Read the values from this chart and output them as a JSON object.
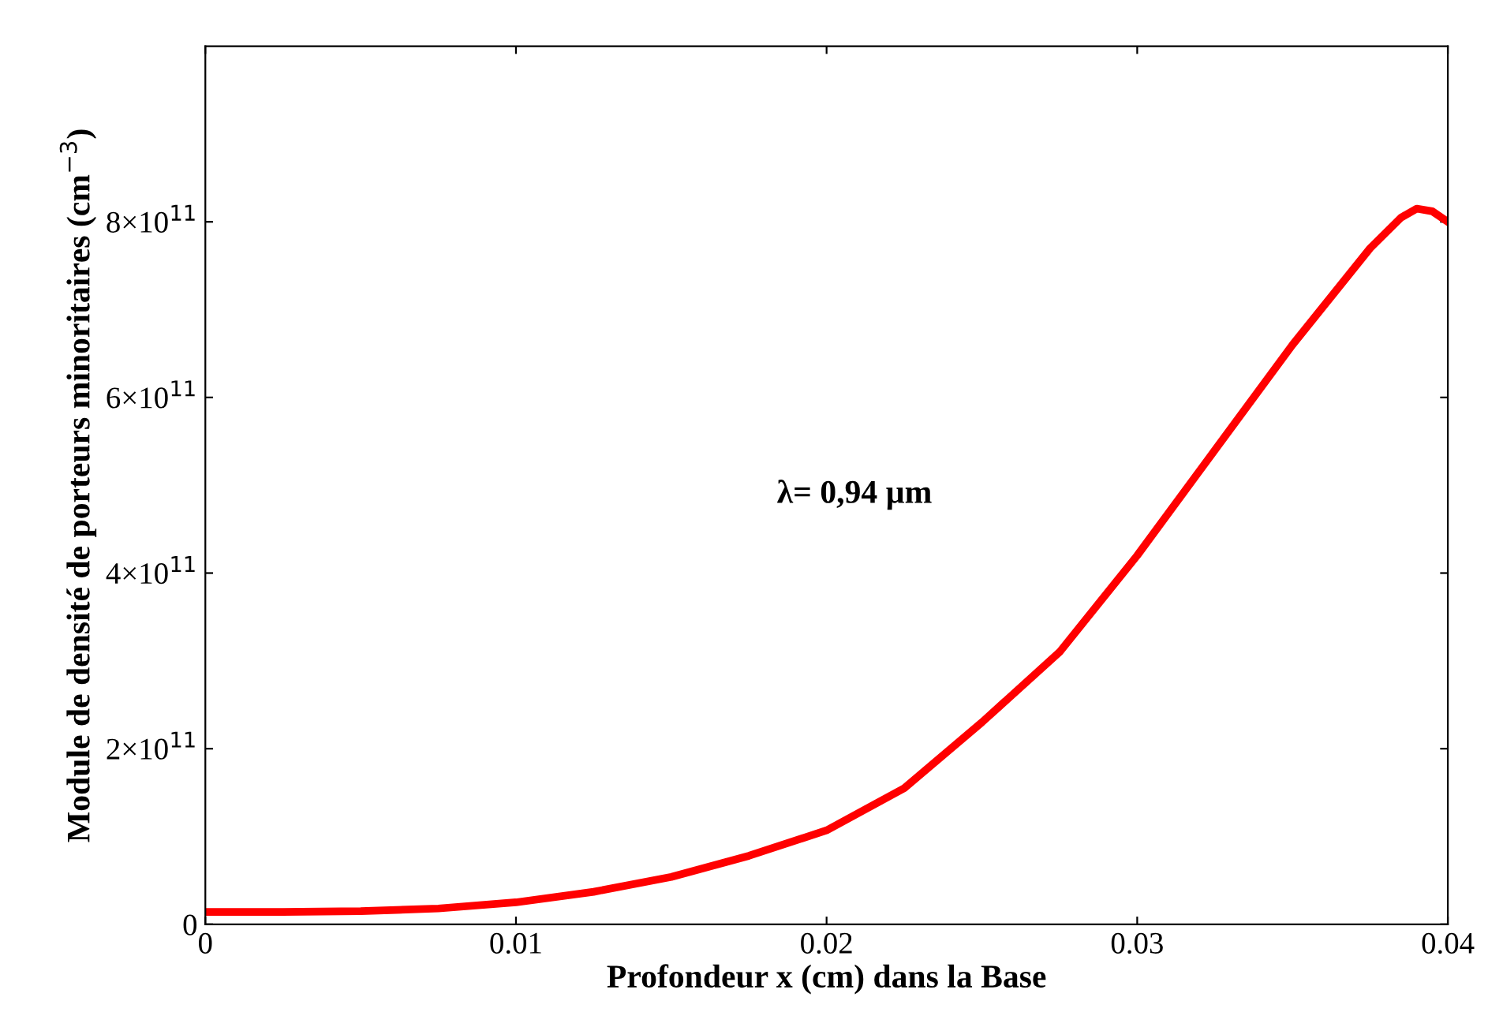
{
  "chart_data": {
    "type": "line",
    "xlabel": "Profondeur x (cm) dans la Base",
    "ylabel": "Module de densité de porteurs minoritaires (cm$^{−3}$)",
    "x": [
      0,
      0.0025,
      0.005,
      0.0075,
      0.01,
      0.0125,
      0.015,
      0.0175,
      0.02,
      0.0225,
      0.025,
      0.0275,
      0.03,
      0.0325,
      0.035,
      0.0375,
      0.0385,
      0.039,
      0.0395,
      0.04
    ],
    "series": [
      {
        "color": "#ff0000",
        "values": [
          14000000000.0,
          14000000000.0,
          15000000000.0,
          18000000000.0,
          25000000000.0,
          37000000000.0,
          54000000000.0,
          78000000000.0,
          107000000000.0,
          155000000000.0,
          230000000000.0,
          310000000000.0,
          420000000000.0,
          540000000000.0,
          660000000000.0,
          770000000000.0,
          805000000000.0,
          815000000000.0,
          812000000000.0,
          800000000000.0
        ]
      }
    ],
    "xlim": [
      0,
      0.04
    ],
    "ylim": [
      0,
      1000000000000.0
    ],
    "xticks": [
      0,
      0.01,
      0.02,
      0.03,
      0.04
    ],
    "yticks": [
      0,
      {
        "value": 200000000000.0,
        "label": "2×10$^{11}$"
      },
      {
        "value": 400000000000.0,
        "label": "4×10$^{11}$"
      },
      {
        "value": 600000000000.0,
        "label": "6×10$^{11}$"
      },
      {
        "value": 800000000000.0,
        "label": "8×10$^{11}$"
      }
    ],
    "annotations": [
      "λ= 0,94 µm"
    ],
    "grid": false,
    "legend": false,
    "marker": "none",
    "line_style": "solid"
  }
}
